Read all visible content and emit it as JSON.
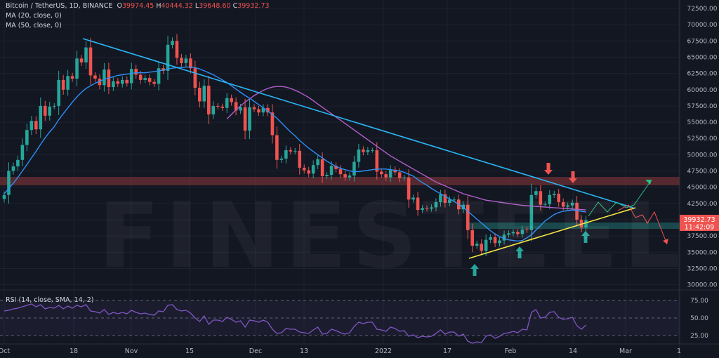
{
  "header": {
    "symbol": "Bitcoin / TetherUS, 1D, BINANCE",
    "ohlc": [
      {
        "label": "O",
        "value": "39974.45"
      },
      {
        "label": "H",
        "value": "40444.32"
      },
      {
        "label": "L",
        "value": "39648.60"
      },
      {
        "label": "C",
        "value": "39932.73"
      }
    ],
    "ma20": "MA (20, close, 0)",
    "ma50": "MA (50, close, 0)"
  },
  "watermark": "FINESTEEL",
  "price_tag": {
    "price": "39932.73",
    "countdown": "11:42:09"
  },
  "rsi": {
    "label": "RSI (14, close, SMA, 14, 2)",
    "ticks": [
      "75.00",
      "50.00",
      "25.00"
    ]
  },
  "colors": {
    "background": "#131722",
    "up": "#26a69a",
    "down": "#ef5350",
    "ma20": "#2d8ff5",
    "ma50": "#b05fc8",
    "trendline_top": "#29b6f6",
    "trendline_bottom": "#f5e642",
    "rsi": "#7e57c2",
    "price_tag": "#ef5350",
    "projection_up": "#26c281",
    "projection_down": "#ef5350"
  },
  "chart_data": {
    "type": "candlestick",
    "title": "Bitcoin / TetherUS, 1D, BINANCE",
    "x_tick_labels": [
      "Oct",
      "18",
      "Nov",
      "15",
      "Dec",
      "13",
      "2022",
      "17",
      "Feb",
      "14",
      "Mar",
      "1"
    ],
    "y_tick_labels": [
      "72500.00",
      "70000.00",
      "67500.00",
      "65000.00",
      "62500.00",
      "60000.00",
      "57500.00",
      "55000.00",
      "52500.00",
      "50000.00",
      "47500.00",
      "45000.00",
      "42500.00",
      "40000.00",
      "37500.00",
      "35000.00",
      "32500.00",
      "30000.00"
    ],
    "ylim": [
      29200,
      73800
    ],
    "closes": [
      43800,
      47500,
      48200,
      49200,
      51500,
      53800,
      55200,
      53900,
      57500,
      56000,
      57400,
      57500,
      61500,
      60000,
      62100,
      61700,
      64800,
      64200,
      66500,
      62200,
      61700,
      60700,
      63100,
      60400,
      61300,
      60900,
      61500,
      61000,
      63200,
      62300,
      61500,
      61800,
      61200,
      60900,
      63300,
      62900,
      66900,
      67500,
      64900,
      64100,
      64800,
      63300,
      60300,
      58200,
      60600,
      56200,
      57500,
      57400,
      57200,
      58700,
      58100,
      56800,
      57300,
      53700,
      57300,
      57000,
      56500,
      57200,
      56500,
      53000,
      49200,
      49400,
      50700,
      50500,
      50600,
      48000,
      47600,
      47100,
      48400,
      49300,
      46700,
      46900,
      48300,
      47800,
      47000,
      46500,
      46800,
      48900,
      50800,
      50400,
      50700,
      50700,
      47400,
      47000,
      46500,
      47700,
      47300,
      46400,
      46500,
      43100,
      43400,
      41500,
      41800,
      41700,
      41900,
      42700,
      43900,
      42600,
      43100,
      43100,
      41600,
      42300,
      38400,
      36000,
      36300,
      35200,
      36900,
      37300,
      36400,
      36800,
      37700,
      37900,
      38100,
      37800,
      38500,
      38400,
      43800,
      44400,
      42300,
      42400,
      43800,
      44000,
      42700,
      42000,
      42200,
      42600,
      40000,
      38800,
      39932
    ],
    "ma20": [
      44000,
      44800,
      45600,
      46500,
      47500,
      48500,
      49500,
      50500,
      51600,
      52600,
      53500,
      54300,
      55400,
      56300,
      57200,
      58100,
      58900,
      59600,
      60200,
      60600,
      61000,
      61300,
      61600,
      61800,
      62000,
      62200,
      62300,
      62400,
      62500,
      62600,
      62600,
      62600,
      62700,
      62800,
      62900,
      63000,
      63200,
      63300,
      63400,
      63400,
      63500,
      63500,
      63400,
      63200,
      62900,
      62600,
      62300,
      61900,
      61500,
      61100,
      60600,
      60100,
      59600,
      59100,
      58700,
      58200,
      57700,
      57200,
      56700,
      56200,
      55600,
      54900,
      54200,
      53500,
      52900,
      52200,
      51600,
      51000,
      50500,
      50000,
      49500,
      49000,
      48600,
      48200,
      47900,
      47700,
      47500,
      47400,
      47400,
      47500,
      47600,
      47700,
      47800,
      47800,
      47800,
      47700,
      47600,
      47500,
      47300,
      47000,
      46700,
      46200,
      45700,
      45300,
      44800,
      44400,
      44000,
      43600,
      43200,
      42800,
      42400,
      41900,
      41300,
      40700,
      40100,
      39500,
      38900,
      38300,
      37800,
      37400,
      37100,
      36900,
      36800,
      36700,
      36800,
      37200,
      37700,
      38400,
      39100,
      39800,
      40300,
      40800,
      41100,
      41300,
      41400,
      41500,
      41400,
      41300,
      41200
    ],
    "ma50": [
      null,
      null,
      null,
      null,
      null,
      null,
      null,
      null,
      null,
      null,
      null,
      null,
      null,
      null,
      null,
      null,
      null,
      null,
      null,
      null,
      null,
      null,
      null,
      null,
      null,
      null,
      null,
      null,
      null,
      null,
      null,
      null,
      null,
      null,
      null,
      null,
      null,
      null,
      null,
      null,
      null,
      null,
      null,
      null,
      null,
      null,
      null,
      null,
      null,
      55500,
      56200,
      56900,
      57500,
      58100,
      58600,
      59100,
      59500,
      59900,
      60200,
      60400,
      60500,
      60500,
      60400,
      60200,
      59900,
      59600,
      59200,
      58800,
      58300,
      57800,
      57300,
      56800,
      56300,
      55800,
      55300,
      54800,
      54300,
      53800,
      53300,
      52800,
      52300,
      51800,
      51300,
      50800,
      50300,
      49800,
      49400,
      49000,
      48600,
      48200,
      47800,
      47400,
      47000,
      46600,
      46200,
      45800,
      45500,
      45200,
      44900,
      44600,
      44300,
      44000,
      43800,
      43600,
      43400,
      43200,
      43000,
      42900,
      42800,
      42700,
      42600,
      42500,
      42400,
      42300,
      42200,
      42150,
      42100,
      42050,
      42000,
      41950,
      41900,
      41850,
      41800,
      41750,
      41700,
      41650,
      41600,
      41550,
      41500
    ],
    "rsi_ylim": [
      15,
      85
    ],
    "rsi_values": [
      60,
      61,
      63,
      64,
      66,
      68,
      70,
      66,
      69,
      63,
      65,
      64,
      68,
      63,
      67,
      64,
      68,
      66,
      69,
      60,
      59,
      57,
      62,
      55,
      58,
      56,
      58,
      56,
      61,
      58,
      56,
      57,
      55,
      54,
      60,
      59,
      68,
      69,
      62,
      60,
      61,
      57,
      50,
      45,
      53,
      41,
      47,
      47,
      45,
      51,
      48,
      44,
      46,
      37,
      47,
      46,
      44,
      47,
      44,
      34,
      28,
      29,
      35,
      34,
      34,
      30,
      29,
      28,
      33,
      37,
      27,
      28,
      34,
      32,
      29,
      27,
      29,
      38,
      44,
      42,
      44,
      44,
      34,
      33,
      31,
      37,
      35,
      31,
      32,
      24,
      26,
      22,
      24,
      23,
      24,
      28,
      33,
      27,
      30,
      30,
      24,
      27,
      17,
      14,
      16,
      15,
      24,
      26,
      21,
      24,
      28,
      29,
      31,
      29,
      34,
      33,
      58,
      62,
      50,
      51,
      58,
      59,
      51,
      48,
      49,
      51,
      39,
      34,
      40
    ]
  }
}
